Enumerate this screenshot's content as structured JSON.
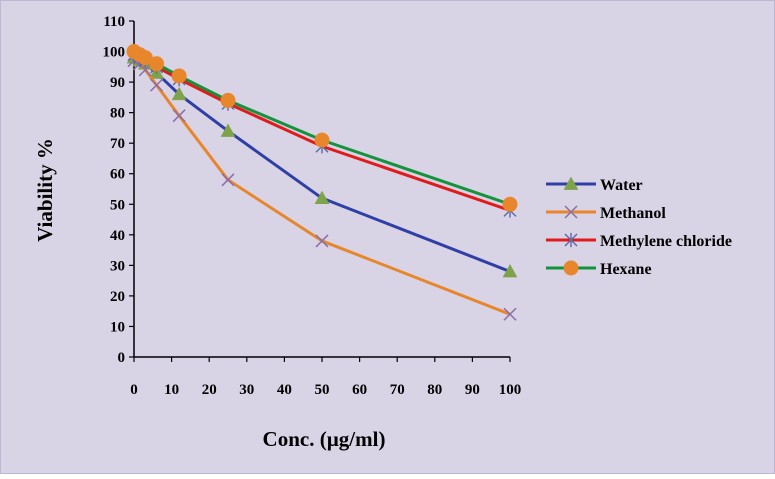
{
  "chart_data": {
    "type": "line",
    "title": "",
    "xlabel": "Conc. (µg/ml)",
    "ylabel": "Viability %",
    "xlim": [
      0,
      100
    ],
    "ylim": [
      0,
      110
    ],
    "x_ticks": [
      0,
      10,
      20,
      30,
      40,
      50,
      60,
      70,
      80,
      90,
      100
    ],
    "y_ticks": [
      0,
      10,
      20,
      30,
      40,
      50,
      60,
      70,
      80,
      90,
      100,
      110
    ],
    "x": [
      0,
      1.5,
      3,
      6,
      12,
      25,
      50,
      100
    ],
    "grid": false,
    "legend_position": "right",
    "background_color": "#d9d3e6",
    "series": [
      {
        "name": "Water",
        "color": "#2f3fa6",
        "marker": "triangle",
        "marker_color": "#7ea34a",
        "values": [
          98,
          97,
          96,
          93,
          86,
          74,
          52,
          28
        ]
      },
      {
        "name": "Methanol",
        "color": "#e8862c",
        "marker": "x",
        "marker_color": "#8a6ea8",
        "values": [
          97,
          96,
          94,
          89,
          79,
          58,
          38,
          14
        ]
      },
      {
        "name": "Methylene chloride",
        "color": "#e11a1a",
        "marker": "asterisk",
        "marker_color": "#5b6ba8",
        "values": [
          99,
          98,
          97,
          95,
          91,
          83,
          69,
          48
        ]
      },
      {
        "name": "Hexane",
        "color": "#15923c",
        "marker": "circle",
        "marker_color": "#e8862c",
        "values": [
          100,
          99,
          98,
          96,
          92,
          84,
          71,
          50
        ]
      }
    ]
  }
}
